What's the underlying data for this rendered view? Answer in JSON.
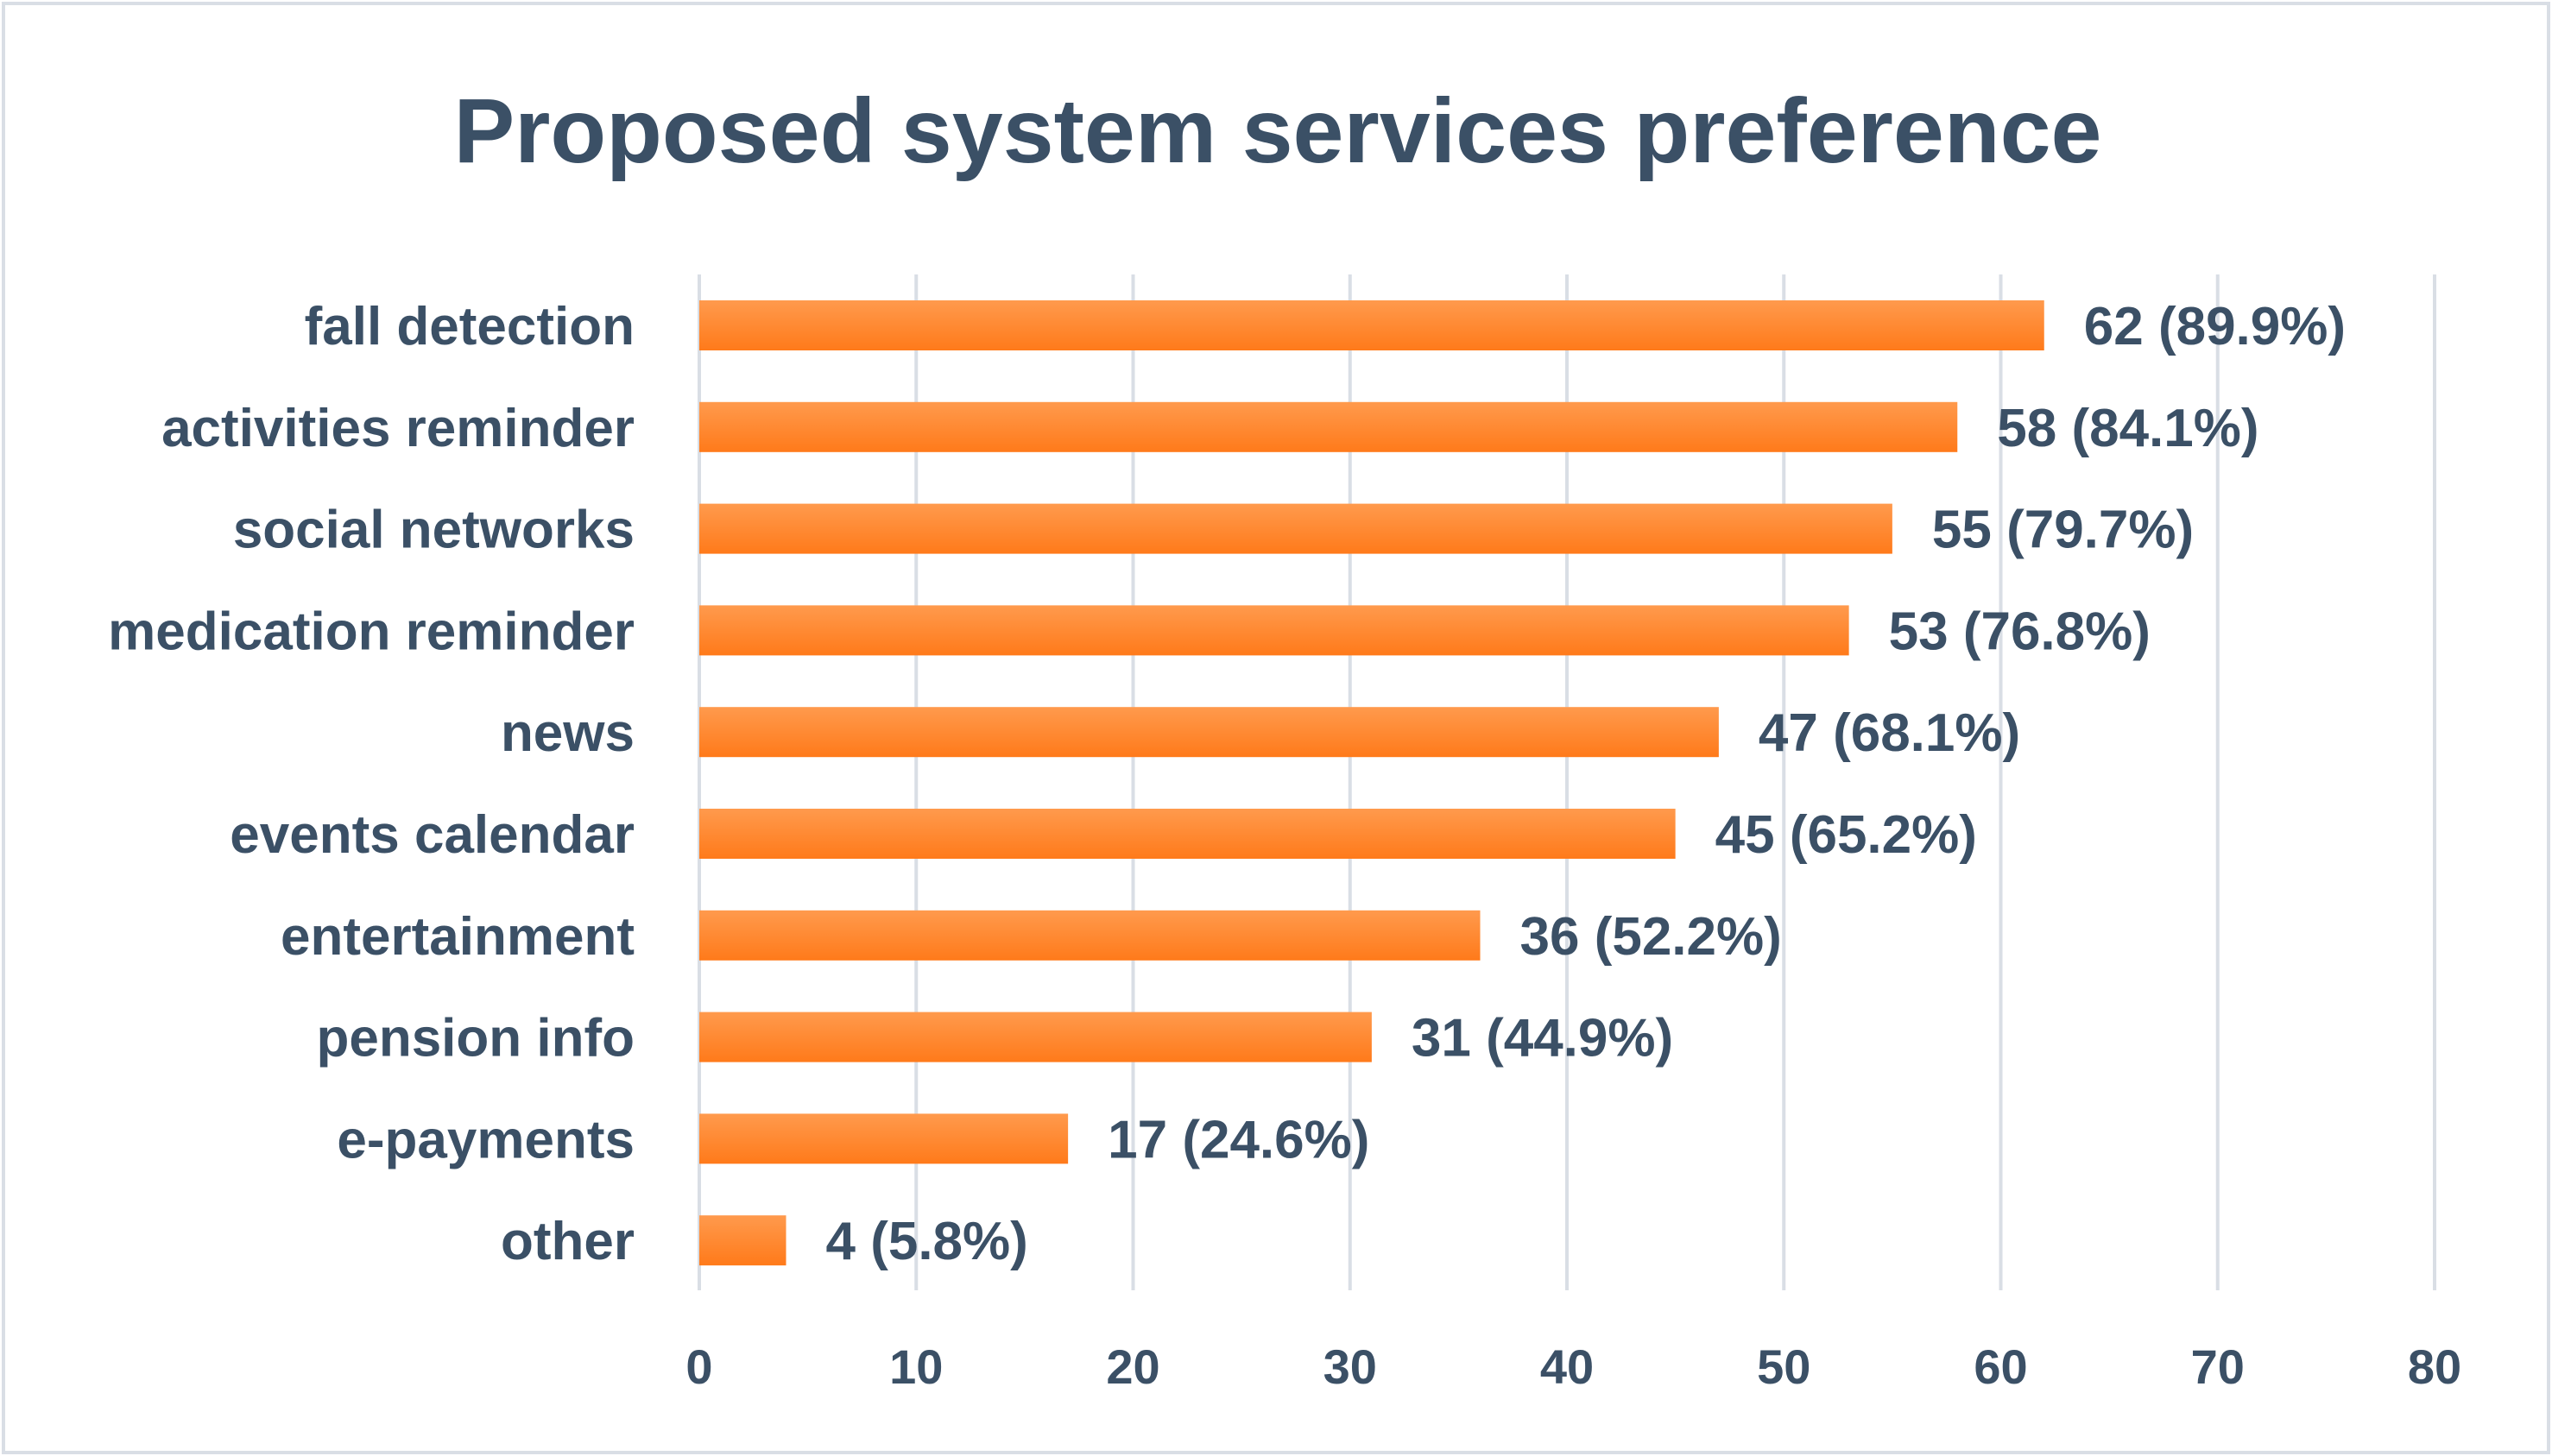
{
  "chart_data": {
    "type": "bar",
    "orientation": "horizontal",
    "title": "Proposed system services preference",
    "categories": [
      "fall detection",
      "activities reminder",
      "social networks",
      "medication reminder",
      "news",
      "events calendar",
      "entertainment",
      "pension info",
      "e-payments",
      "other"
    ],
    "values": [
      62,
      58,
      55,
      53,
      47,
      45,
      36,
      31,
      17,
      4
    ],
    "data_labels": [
      "62 (89.9%)",
      "58 (84.1%)",
      "55 (79.7%)",
      "53 (76.8%)",
      "47 (68.1%)",
      "45 (65.2%)",
      "36 (52.2%)",
      "31 (44.9%)",
      "17 (24.6%)",
      "4 (5.8%)"
    ],
    "xlim": [
      0,
      80
    ],
    "xticks": [
      "0",
      "10",
      "20",
      "30",
      "40",
      "50",
      "60",
      "70",
      "80"
    ],
    "xlabel": "",
    "ylabel": "",
    "grid": "vertical",
    "legend": "none"
  },
  "colors": {
    "bar": "#ff7a1a",
    "bar_highlight": "#ff9a4d",
    "text": "#3b5066",
    "grid": "#d9dee5",
    "border": "#d9dee5",
    "background": "#ffffff"
  }
}
